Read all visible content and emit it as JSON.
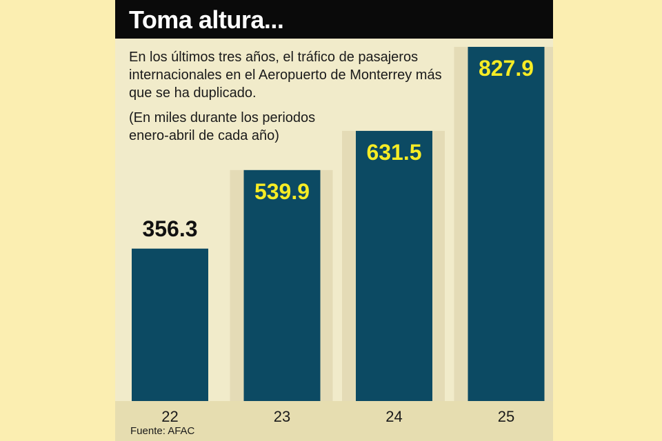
{
  "header": {
    "title": "Toma altura..."
  },
  "chart_data": {
    "type": "bar",
    "categories": [
      "22",
      "23",
      "24",
      "25"
    ],
    "values": [
      356.3,
      539.9,
      631.5,
      827.9
    ],
    "value_labels": [
      "356.3",
      "539.9",
      "631.5",
      "827.9"
    ],
    "title": "Toma altura...",
    "subtitle": "En los últimos tres años, el tráfico de pasajeros internacionales en el Aeropuerto de Monterrey más que se ha duplicado.",
    "note": "(En miles durante los periodos enero-abril de cada año)",
    "source": "Fuente: AFAC",
    "xlabel": "",
    "ylabel": "",
    "ylim": [
      0,
      880
    ],
    "grid": false,
    "legend": "none"
  },
  "colors": {
    "page_background": "#fbeeb1",
    "panel_background": "#f1ebca",
    "header_background": "#0a0a0a",
    "bar": "#0c4a63",
    "label_highlight": "#f6ec25",
    "label_dark": "#111111",
    "text": "#1a1a1a"
  }
}
